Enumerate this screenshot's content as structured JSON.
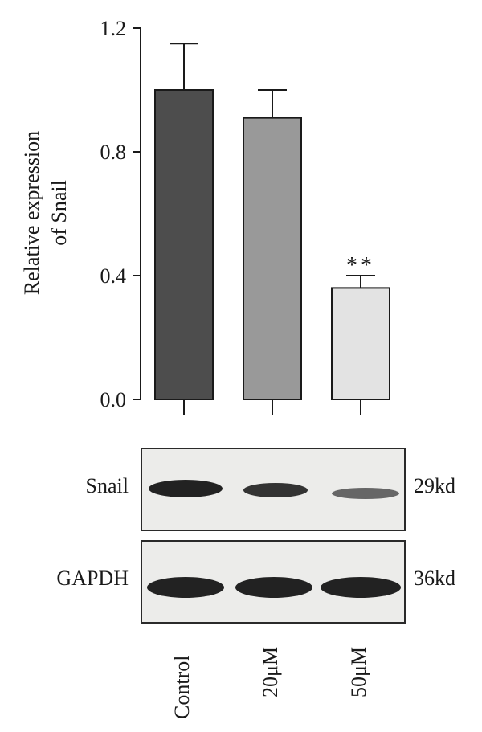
{
  "chart_data": {
    "type": "bar",
    "categories": [
      "Control",
      "20μM",
      "50μM"
    ],
    "values": [
      1.0,
      0.91,
      0.36
    ],
    "errors": [
      0.15,
      0.09,
      0.04
    ],
    "ylabel_line1": "Relative expression",
    "ylabel_line2": "of Snail",
    "ylim": [
      0,
      1.2
    ],
    "yticks": [
      "0.0",
      "0.4",
      "0.8",
      "1.2"
    ],
    "bar_colors": [
      "#4d4d4d",
      "#999999",
      "#e3e3e3"
    ],
    "annotations": [
      {
        "category": "50μM",
        "text": "**"
      }
    ]
  },
  "western_blot": {
    "rows": [
      {
        "protein": "Snail",
        "size": "29kd",
        "band_intensity": [
          1.0,
          0.8,
          0.35
        ]
      },
      {
        "protein": "GAPDH",
        "size": "36kd",
        "band_intensity": [
          1.0,
          1.0,
          1.0
        ]
      }
    ],
    "lanes": [
      "Control",
      "20μM",
      "50μM"
    ]
  }
}
